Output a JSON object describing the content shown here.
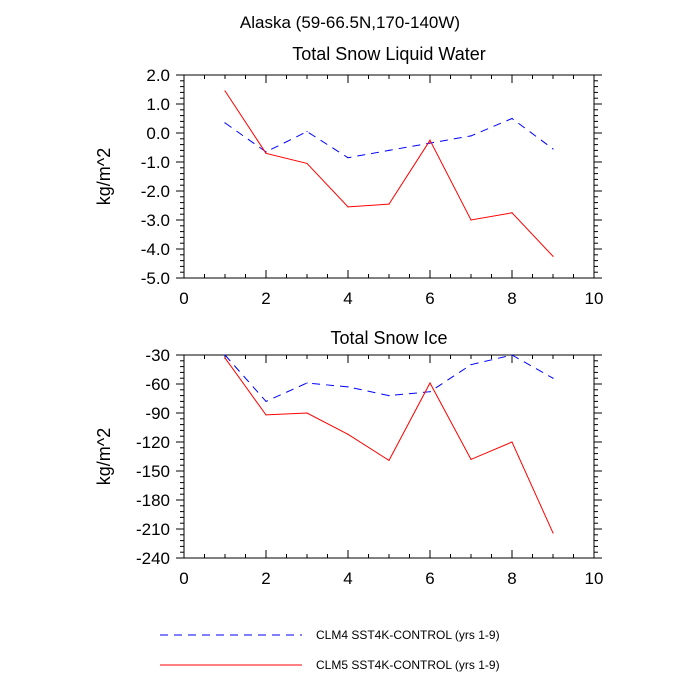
{
  "figure_title": "Alaska (59-66.5N,170-140W)",
  "legend": [
    {
      "label": "CLM4 SST4K-CONTROL (yrs 1-9)",
      "color": "#0000ff",
      "dash": "dashed"
    },
    {
      "label": "CLM5 SST4K-CONTROL (yrs 1-9)",
      "color": "#ff0000",
      "dash": "solid"
    }
  ],
  "chart_data": [
    {
      "type": "line",
      "title": "Total Snow Liquid Water",
      "xlabel": "",
      "ylabel": "kg/m^2",
      "xlim": [
        0,
        10
      ],
      "ylim": [
        -5,
        2
      ],
      "xticks": [
        0,
        2,
        4,
        6,
        8,
        10
      ],
      "xtick_labels": [
        "0",
        "2",
        "4",
        "6",
        "8",
        "10"
      ],
      "yticks": [
        2,
        1,
        0,
        -1,
        -2,
        -3,
        -4,
        -5
      ],
      "ytick_labels": [
        "2.0",
        "1.0",
        "0.0",
        "-1.0",
        "-2.0",
        "-3.0",
        "-4.0",
        "-5.0"
      ],
      "x": [
        1,
        2,
        3,
        4,
        5,
        6,
        7,
        8,
        9
      ],
      "series": [
        {
          "name": "CLM4 SST4K-CONTROL (yrs 1-9)",
          "color": "#0000ff",
          "dash": "dashed",
          "values": [
            0.35,
            -0.65,
            0.05,
            -0.85,
            -0.6,
            -0.35,
            -0.1,
            0.5,
            -0.55
          ]
        },
        {
          "name": "CLM5 SST4K-CONTROL (yrs 1-9)",
          "color": "#ff0000",
          "dash": "solid",
          "values": [
            1.45,
            -0.7,
            -1.05,
            -2.55,
            -2.45,
            -0.25,
            -3.0,
            -2.75,
            -4.25
          ]
        }
      ]
    },
    {
      "type": "line",
      "title": "Total Snow Ice",
      "xlabel": "",
      "ylabel": "kg/m^2",
      "xlim": [
        0,
        10
      ],
      "ylim": [
        -240,
        -30
      ],
      "xticks": [
        0,
        2,
        4,
        6,
        8,
        10
      ],
      "xtick_labels": [
        "0",
        "2",
        "4",
        "6",
        "8",
        "10"
      ],
      "yticks": [
        -30,
        -60,
        -90,
        -120,
        -150,
        -180,
        -210,
        -240
      ],
      "ytick_labels": [
        "-30",
        "-60",
        "-90",
        "-120",
        "-150",
        "-180",
        "-210",
        "-240"
      ],
      "x": [
        1,
        2,
        3,
        4,
        5,
        6,
        7,
        8,
        9
      ],
      "series": [
        {
          "name": "CLM4 SST4K-CONTROL (yrs 1-9)",
          "color": "#0000ff",
          "dash": "dashed",
          "values": [
            -30,
            -78,
            -59,
            -63,
            -72,
            -68,
            -40,
            -30,
            -54
          ]
        },
        {
          "name": "CLM5 SST4K-CONTROL (yrs 1-9)",
          "color": "#ff0000",
          "dash": "solid",
          "values": [
            -33,
            -92,
            -90,
            -112,
            -139,
            -59,
            -138,
            -120,
            -214
          ]
        }
      ]
    }
  ]
}
